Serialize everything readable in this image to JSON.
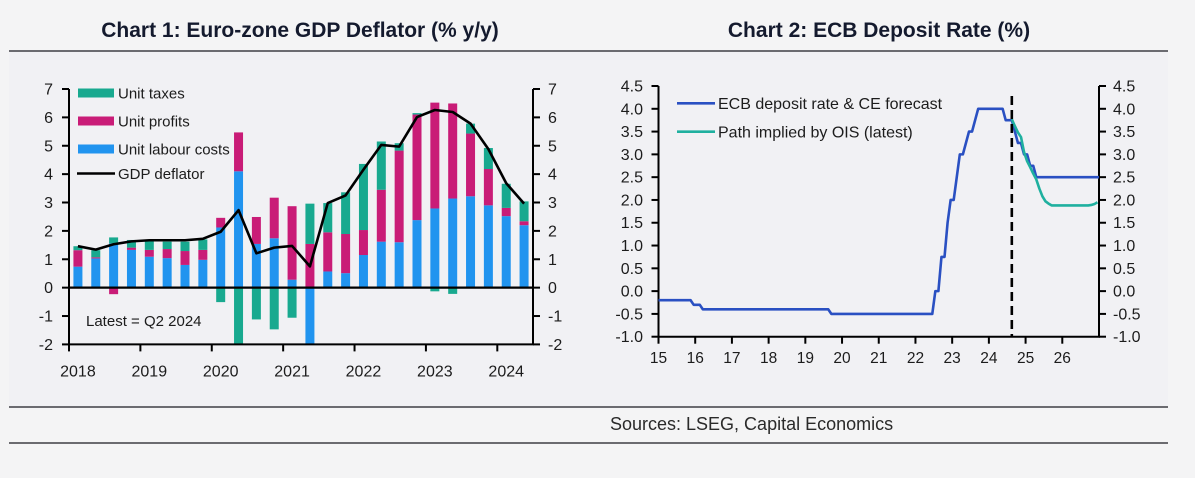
{
  "page": {
    "sources": "Sources: LSEG, Capital Economics"
  },
  "chart_data": [
    {
      "type": "bar",
      "stacked": true,
      "title": "Chart 1: Euro-zone GDP Deflator (% y/y)",
      "xlabel": "",
      "ylabel": "",
      "categories": [
        "Q1 2018",
        "Q2 2018",
        "Q3 2018",
        "Q4 2018",
        "Q1 2019",
        "Q2 2019",
        "Q3 2019",
        "Q4 2019",
        "Q1 2020",
        "Q2 2020",
        "Q3 2020",
        "Q4 2020",
        "Q1 2021",
        "Q2 2021",
        "Q3 2021",
        "Q4 2021",
        "Q1 2022",
        "Q2 2022",
        "Q3 2022",
        "Q4 2022",
        "Q1 2023",
        "Q2 2023",
        "Q3 2023",
        "Q4 2023",
        "Q1 2024",
        "Q2 2024"
      ],
      "series": [
        {
          "name": "Unit labour costs",
          "type": "bar",
          "color": "#2194ef",
          "values": [
            0.74,
            1.03,
            1.56,
            1.33,
            1.09,
            1.04,
            0.8,
            0.98,
            2.12,
            4.1,
            1.54,
            1.74,
            0.28,
            -2.3,
            0.57,
            0.51,
            1.15,
            1.62,
            1.6,
            2.38,
            2.79,
            3.14,
            3.22,
            2.9,
            2.52,
            2.2
          ]
        },
        {
          "name": "Unit profits",
          "type": "bar",
          "color": "#c91c77",
          "values": [
            0.58,
            0.04,
            -0.23,
            0.08,
            0.24,
            0.32,
            0.49,
            0.35,
            0.34,
            1.37,
            0.95,
            1.43,
            2.59,
            1.54,
            1.38,
            1.38,
            0.88,
            1.83,
            3.23,
            3.72,
            3.73,
            3.35,
            2.21,
            1.28,
            0.29,
            0.14
          ]
        },
        {
          "name": "Unit taxes",
          "type": "bar",
          "color": "#18a98f",
          "values": [
            0.14,
            0.25,
            0.21,
            0.27,
            0.35,
            0.26,
            0.33,
            0.37,
            -0.51,
            -2.6,
            -1.12,
            -1.47,
            -1.06,
            1.42,
            1.03,
            1.47,
            2.33,
            1.7,
            0.26,
            0.05,
            -0.13,
            -0.22,
            0.35,
            0.74,
            0.85,
            0.7
          ]
        },
        {
          "name": "GDP deflator",
          "type": "line",
          "color": "#000000",
          "values": [
            1.46,
            1.34,
            1.53,
            1.63,
            1.67,
            1.67,
            1.67,
            1.72,
            1.97,
            2.73,
            1.21,
            1.41,
            1.47,
            0.75,
            2.98,
            3.25,
            4.16,
            5.03,
            4.97,
            6.01,
            6.26,
            6.19,
            5.78,
            4.88,
            3.68,
            2.96
          ]
        }
      ],
      "x_tick_labels": [
        "2018",
        "2019",
        "2020",
        "2021",
        "2022",
        "2023",
        "2024"
      ],
      "y_ticks": [
        -2,
        -1,
        0,
        1,
        2,
        3,
        4,
        5,
        6,
        7
      ],
      "y_tick_labels": [
        "-2",
        "-1",
        "0",
        "1",
        "2",
        "3",
        "4",
        "5",
        "6",
        "7"
      ],
      "ylim": [
        -2,
        7
      ],
      "y2lim": [
        -2,
        7
      ],
      "grid": false,
      "legend_position": "top-left",
      "annotation": "Latest = Q2 2024"
    },
    {
      "type": "line",
      "title": "Chart 2: ECB Deposit Rate (%)",
      "xlabel": "",
      "ylabel": "",
      "xlim": [
        2015,
        2027
      ],
      "x_ticks": [
        2015,
        2016,
        2017,
        2018,
        2019,
        2020,
        2021,
        2022,
        2023,
        2024,
        2025,
        2026
      ],
      "x_tick_labels": [
        "15",
        "16",
        "17",
        "18",
        "19",
        "20",
        "21",
        "22",
        "23",
        "24",
        "25",
        "26"
      ],
      "ylim": [
        -1.0,
        4.5
      ],
      "y2lim": [
        -1.0,
        4.5
      ],
      "y_ticks": [
        -1.0,
        -0.5,
        0.0,
        0.5,
        1.0,
        1.5,
        2.0,
        2.5,
        3.0,
        3.5,
        4.0,
        4.5
      ],
      "y_tick_labels": [
        "-1.0",
        "-0.5",
        "0.0",
        "0.5",
        "1.0",
        "1.5",
        "2.0",
        "2.5",
        "3.0",
        "3.5",
        "4.0",
        "4.5"
      ],
      "grid": false,
      "legend_position": "top-left",
      "forecast_start": "2024-08",
      "series": [
        {
          "name": "ECB deposit rate & CE forecast",
          "color": "#2a50c2",
          "frequency": "monthly",
          "end": "2026-12",
          "step_changes": [
            {
              "date": "2015-01",
              "value": -0.2
            },
            {
              "date": "2015-12",
              "value": -0.3
            },
            {
              "date": "2016-03",
              "value": -0.4
            },
            {
              "date": "2019-09",
              "value": -0.5
            },
            {
              "date": "2022-07",
              "value": 0.0
            },
            {
              "date": "2022-09",
              "value": 0.75
            },
            {
              "date": "2022-11",
              "value": 1.5
            },
            {
              "date": "2022-12",
              "value": 2.0
            },
            {
              "date": "2023-02",
              "value": 2.5
            },
            {
              "date": "2023-03",
              "value": 3.0
            },
            {
              "date": "2023-05",
              "value": 3.25
            },
            {
              "date": "2023-06",
              "value": 3.5
            },
            {
              "date": "2023-08",
              "value": 3.75
            },
            {
              "date": "2023-09",
              "value": 4.0
            },
            {
              "date": "2024-06",
              "value": 3.75
            },
            {
              "date": "2024-09",
              "value": 3.5
            },
            {
              "date": "2024-10",
              "value": 3.25
            },
            {
              "date": "2024-12",
              "value": 3.0
            },
            {
              "date": "2025-02",
              "value": 2.75
            },
            {
              "date": "2025-04",
              "value": 2.5
            }
          ]
        },
        {
          "name": "Path implied by OIS (latest)",
          "color": "#1fb09f",
          "points": [
            [
              "2024-08",
              3.77
            ],
            [
              "2024-09",
              3.62
            ],
            [
              "2024-10",
              3.48
            ],
            [
              "2024-11",
              3.38
            ],
            [
              "2024-12",
              3.05
            ],
            [
              "2025-01",
              2.85
            ],
            [
              "2025-02",
              2.72
            ],
            [
              "2025-03",
              2.58
            ],
            [
              "2025-04",
              2.45
            ],
            [
              "2025-05",
              2.25
            ],
            [
              "2025-06",
              2.08
            ],
            [
              "2025-07",
              1.97
            ],
            [
              "2025-08",
              1.92
            ],
            [
              "2025-09",
              1.88
            ],
            [
              "2025-10",
              1.88
            ],
            [
              "2025-11",
              1.88
            ],
            [
              "2025-12",
              1.88
            ],
            [
              "2026-01",
              1.88
            ],
            [
              "2026-02",
              1.88
            ],
            [
              "2026-03",
              1.88
            ],
            [
              "2026-04",
              1.88
            ],
            [
              "2026-05",
              1.88
            ],
            [
              "2026-06",
              1.88
            ],
            [
              "2026-07",
              1.88
            ],
            [
              "2026-08",
              1.88
            ],
            [
              "2026-09",
              1.88
            ],
            [
              "2026-10",
              1.89
            ],
            [
              "2026-11",
              1.91
            ],
            [
              "2026-12",
              1.95
            ]
          ]
        }
      ]
    }
  ]
}
